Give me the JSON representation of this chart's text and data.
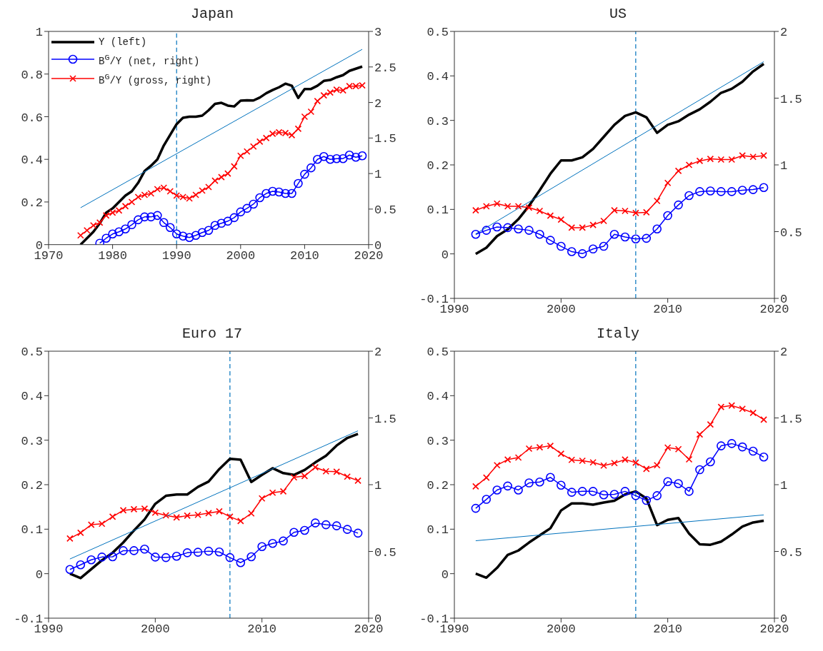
{
  "chart_data": [
    {
      "type": "line",
      "title": "Japan",
      "xlim": [
        1970,
        2020
      ],
      "xticks": [
        1970,
        1980,
        1990,
        2000,
        2010,
        2020
      ],
      "ylim": [
        0,
        1
      ],
      "yticks": [
        0,
        0.2,
        0.4,
        0.6,
        0.8,
        1
      ],
      "y2lim": [
        0,
        3
      ],
      "y2ticks": [
        0,
        0.5,
        1,
        1.5,
        2,
        2.5,
        3
      ],
      "legend": "top left",
      "ref_lines": [
        {
          "axis": "x",
          "value": 1990,
          "color": "#0072bd",
          "line_style": "dashed"
        }
      ],
      "series": [
        {
          "name": "Y (left)",
          "color": "#000000",
          "marker": "none",
          "x": [
            1975,
            1976,
            1977,
            1978,
            1979,
            1980,
            1981,
            1982,
            1983,
            1984,
            1985,
            1986,
            1987,
            1988,
            1989,
            1990,
            1991,
            1992,
            1993,
            1994,
            1995,
            1996,
            1997,
            1998,
            1999,
            2000,
            2001,
            2002,
            2003,
            2004,
            2005,
            2006,
            2007,
            2008,
            2009,
            2010,
            2011,
            2012,
            2013,
            2014,
            2015,
            2016,
            2017,
            2018,
            2019
          ],
          "values": [
            0.0,
            0.03,
            0.06,
            0.1,
            0.15,
            0.17,
            0.2,
            0.23,
            0.25,
            0.29,
            0.345,
            0.37,
            0.4,
            0.465,
            0.515,
            0.565,
            0.595,
            0.6,
            0.6,
            0.605,
            0.63,
            0.66,
            0.665,
            0.652,
            0.648,
            0.675,
            0.677,
            0.676,
            0.69,
            0.71,
            0.725,
            0.738,
            0.755,
            0.745,
            0.688,
            0.73,
            0.73,
            0.745,
            0.768,
            0.772,
            0.785,
            0.795,
            0.815,
            0.825,
            0.835
          ]
        },
        {
          "name": "B$^{G}$/Y (net, right)",
          "color": "#0000ff",
          "marker": "circle",
          "axis": "y2",
          "x": [
            1978,
            1979,
            1980,
            1981,
            1982,
            1983,
            1984,
            1985,
            1986,
            1987,
            1988,
            1989,
            1990,
            1991,
            1992,
            1993,
            1994,
            1995,
            1996,
            1997,
            1998,
            1999,
            2000,
            2001,
            2002,
            2003,
            2004,
            2005,
            2006,
            2007,
            2008,
            2009,
            2010,
            2011,
            2012,
            2013,
            2014,
            2015,
            2016,
            2017,
            2018,
            2019
          ],
          "values": [
            0.02,
            0.09,
            0.15,
            0.18,
            0.22,
            0.28,
            0.35,
            0.39,
            0.39,
            0.41,
            0.31,
            0.24,
            0.15,
            0.12,
            0.1,
            0.13,
            0.17,
            0.2,
            0.27,
            0.3,
            0.33,
            0.38,
            0.46,
            0.51,
            0.57,
            0.66,
            0.72,
            0.75,
            0.74,
            0.72,
            0.72,
            0.86,
            0.99,
            1.08,
            1.2,
            1.24,
            1.2,
            1.21,
            1.21,
            1.26,
            1.23,
            1.25
          ]
        },
        {
          "name": "B$^{G}$/Y (gross, right)",
          "color": "#ff0000",
          "marker": "cross",
          "axis": "y2",
          "x": [
            1975,
            1976,
            1977,
            1978,
            1979,
            1980,
            1981,
            1982,
            1983,
            1984,
            1985,
            1986,
            1987,
            1988,
            1989,
            1990,
            1991,
            1992,
            1993,
            1994,
            1995,
            1996,
            1997,
            1998,
            1999,
            2000,
            2001,
            2002,
            2003,
            2004,
            2005,
            2006,
            2007,
            2008,
            2009,
            2010,
            2011,
            2012,
            2013,
            2014,
            2015,
            2016,
            2017,
            2018,
            2019
          ],
          "values": [
            0.13,
            0.2,
            0.27,
            0.31,
            0.41,
            0.45,
            0.48,
            0.54,
            0.6,
            0.67,
            0.7,
            0.72,
            0.78,
            0.8,
            0.75,
            0.69,
            0.67,
            0.65,
            0.7,
            0.76,
            0.81,
            0.9,
            0.95,
            1.0,
            1.1,
            1.25,
            1.31,
            1.38,
            1.45,
            1.5,
            1.56,
            1.58,
            1.57,
            1.54,
            1.63,
            1.8,
            1.87,
            2.02,
            2.1,
            2.14,
            2.18,
            2.17,
            2.23,
            2.23,
            2.24
          ]
        },
        {
          "color": "#0072bd",
          "marker": "none",
          "x": [
            1975,
            2019
          ],
          "values": [
            0.173,
            0.916
          ]
        }
      ]
    },
    {
      "type": "line",
      "title": "US",
      "xlim": [
        1990,
        2020
      ],
      "xticks": [
        1990,
        2000,
        2010,
        2020
      ],
      "ylim": [
        -0.1,
        0.5
      ],
      "yticks": [
        -0.1,
        0,
        0.1,
        0.2,
        0.3,
        0.4,
        0.5
      ],
      "y2lim": [
        0,
        2
      ],
      "y2ticks": [
        0,
        0.5,
        1,
        1.5,
        2
      ],
      "ref_lines": [
        {
          "axis": "x",
          "value": 2007,
          "color": "#0072bd",
          "line_style": "dashed"
        }
      ],
      "series": [
        {
          "color": "#000000",
          "marker": "none",
          "x": [
            1992,
            1993,
            1994,
            1995,
            1996,
            1997,
            1998,
            1999,
            2000,
            2001,
            2002,
            2003,
            2004,
            2005,
            2006,
            2007,
            2008,
            2009,
            2010,
            2011,
            2012,
            2013,
            2014,
            2015,
            2016,
            2017,
            2018,
            2019
          ],
          "values": [
            0.0,
            0.014,
            0.04,
            0.055,
            0.078,
            0.108,
            0.143,
            0.18,
            0.21,
            0.21,
            0.217,
            0.236,
            0.263,
            0.29,
            0.31,
            0.318,
            0.307,
            0.272,
            0.29,
            0.298,
            0.313,
            0.325,
            0.342,
            0.362,
            0.371,
            0.387,
            0.41,
            0.427
          ]
        },
        {
          "color": "#0000ff",
          "marker": "circle",
          "axis": "y2",
          "x": [
            1992,
            1993,
            1994,
            1995,
            1996,
            1997,
            1998,
            1999,
            2000,
            2001,
            2002,
            2003,
            2004,
            2005,
            2006,
            2007,
            2008,
            2009,
            2010,
            2011,
            2012,
            2013,
            2014,
            2015,
            2016,
            2017,
            2018,
            2019
          ],
          "values": [
            0.48,
            0.51,
            0.535,
            0.53,
            0.52,
            0.51,
            0.48,
            0.435,
            0.39,
            0.35,
            0.335,
            0.37,
            0.39,
            0.48,
            0.46,
            0.445,
            0.45,
            0.52,
            0.62,
            0.7,
            0.77,
            0.8,
            0.805,
            0.8,
            0.8,
            0.81,
            0.815,
            0.83
          ]
        },
        {
          "color": "#ff0000",
          "marker": "cross",
          "axis": "y2",
          "x": [
            1992,
            1993,
            1994,
            1995,
            1996,
            1997,
            1998,
            1999,
            2000,
            2001,
            2002,
            2003,
            2004,
            2005,
            2006,
            2007,
            2008,
            2009,
            2010,
            2011,
            2012,
            2013,
            2014,
            2015,
            2016,
            2017,
            2018,
            2019
          ],
          "values": [
            0.66,
            0.69,
            0.71,
            0.69,
            0.69,
            0.68,
            0.655,
            0.62,
            0.59,
            0.53,
            0.53,
            0.55,
            0.58,
            0.66,
            0.655,
            0.64,
            0.645,
            0.73,
            0.865,
            0.955,
            1.0,
            1.03,
            1.045,
            1.04,
            1.04,
            1.07,
            1.06,
            1.07
          ]
        },
        {
          "color": "#0072bd",
          "marker": "none",
          "x": [
            1992,
            2019
          ],
          "values": [
            0.045,
            0.432
          ]
        }
      ]
    },
    {
      "type": "line",
      "title": "Euro 17",
      "xlim": [
        1990,
        2020
      ],
      "xticks": [
        1990,
        2000,
        2010,
        2020
      ],
      "ylim": [
        -0.1,
        0.5
      ],
      "yticks": [
        -0.1,
        0,
        0.1,
        0.2,
        0.3,
        0.4,
        0.5
      ],
      "y2lim": [
        0,
        2
      ],
      "y2ticks": [
        0,
        0.5,
        1,
        1.5,
        2
      ],
      "ref_lines": [
        {
          "axis": "x",
          "value": 2007,
          "color": "#0072bd",
          "line_style": "dashed"
        }
      ],
      "series": [
        {
          "color": "#000000",
          "marker": "none",
          "x": [
            1992,
            1993,
            1994,
            1995,
            1996,
            1997,
            1998,
            1999,
            2000,
            2001,
            2002,
            2003,
            2004,
            2005,
            2006,
            2007,
            2008,
            2009,
            2010,
            2011,
            2012,
            2013,
            2014,
            2015,
            2016,
            2017,
            2018,
            2019
          ],
          "values": [
            0.0,
            -0.01,
            0.01,
            0.03,
            0.047,
            0.07,
            0.097,
            0.122,
            0.157,
            0.175,
            0.178,
            0.178,
            0.195,
            0.207,
            0.235,
            0.258,
            0.256,
            0.206,
            0.222,
            0.237,
            0.226,
            0.222,
            0.233,
            0.25,
            0.265,
            0.288,
            0.305,
            0.314
          ]
        },
        {
          "color": "#0000ff",
          "marker": "circle",
          "axis": "y2",
          "x": [
            1992,
            1993,
            1994,
            1995,
            1996,
            1997,
            1998,
            1999,
            2000,
            2001,
            2002,
            2003,
            2004,
            2005,
            2006,
            2007,
            2008,
            2009,
            2010,
            2011,
            2012,
            2013,
            2014,
            2015,
            2016,
            2017,
            2018,
            2019
          ],
          "values": [
            0.365,
            0.4,
            0.437,
            0.458,
            0.46,
            0.506,
            0.506,
            0.517,
            0.458,
            0.454,
            0.464,
            0.49,
            0.494,
            0.502,
            0.496,
            0.454,
            0.416,
            0.46,
            0.536,
            0.56,
            0.578,
            0.643,
            0.658,
            0.713,
            0.7,
            0.692,
            0.665,
            0.637
          ]
        },
        {
          "color": "#ff0000",
          "marker": "cross",
          "axis": "y2",
          "x": [
            1992,
            1993,
            1994,
            1995,
            1996,
            1997,
            1998,
            1999,
            2000,
            2001,
            2002,
            2003,
            2004,
            2005,
            2006,
            2007,
            2008,
            2009,
            2010,
            2011,
            2012,
            2013,
            2014,
            2015,
            2016,
            2017,
            2018,
            2019
          ],
          "values": [
            0.597,
            0.64,
            0.7,
            0.707,
            0.76,
            0.808,
            0.816,
            0.82,
            0.79,
            0.77,
            0.755,
            0.768,
            0.774,
            0.787,
            0.8,
            0.76,
            0.728,
            0.785,
            0.897,
            0.94,
            0.95,
            1.055,
            1.065,
            1.13,
            1.1,
            1.097,
            1.06,
            1.03
          ]
        },
        {
          "color": "#0072bd",
          "marker": "none",
          "x": [
            1992,
            2019
          ],
          "values": [
            0.033,
            0.321
          ]
        }
      ]
    },
    {
      "type": "line",
      "title": "Italy",
      "xlim": [
        1990,
        2020
      ],
      "xticks": [
        1990,
        2000,
        2010,
        2020
      ],
      "ylim": [
        -0.1,
        0.5
      ],
      "yticks": [
        -0.1,
        0,
        0.1,
        0.2,
        0.3,
        0.4,
        0.5
      ],
      "y2lim": [
        0,
        2
      ],
      "y2ticks": [
        0,
        0.5,
        1,
        1.5,
        2
      ],
      "ref_lines": [
        {
          "axis": "x",
          "value": 2007,
          "color": "#0072bd",
          "line_style": "dashed"
        }
      ],
      "series": [
        {
          "color": "#000000",
          "marker": "none",
          "x": [
            1992,
            1993,
            1994,
            1995,
            1996,
            1997,
            1998,
            1999,
            2000,
            2001,
            2002,
            2003,
            2004,
            2005,
            2006,
            2007,
            2008,
            2009,
            2010,
            2011,
            2012,
            2013,
            2014,
            2015,
            2016,
            2017,
            2018,
            2019
          ],
          "values": [
            0.0,
            -0.009,
            0.013,
            0.042,
            0.052,
            0.07,
            0.086,
            0.102,
            0.142,
            0.158,
            0.158,
            0.155,
            0.16,
            0.164,
            0.178,
            0.185,
            0.169,
            0.109,
            0.121,
            0.125,
            0.09,
            0.066,
            0.065,
            0.072,
            0.088,
            0.106,
            0.115,
            0.119
          ]
        },
        {
          "color": "#0000ff",
          "marker": "circle",
          "axis": "y2",
          "x": [
            1992,
            1993,
            1994,
            1995,
            1996,
            1997,
            1998,
            1999,
            2000,
            2001,
            2002,
            2003,
            2004,
            2005,
            2006,
            2007,
            2008,
            2009,
            2010,
            2011,
            2012,
            2013,
            2014,
            2015,
            2016,
            2017,
            2018,
            2019
          ],
          "values": [
            0.823,
            0.89,
            0.96,
            0.99,
            0.96,
            1.013,
            1.02,
            1.055,
            0.996,
            0.943,
            0.95,
            0.95,
            0.924,
            0.928,
            0.95,
            0.918,
            0.882,
            0.918,
            1.023,
            1.008,
            0.95,
            1.112,
            1.171,
            1.291,
            1.308,
            1.283,
            1.251,
            1.207
          ]
        },
        {
          "color": "#ff0000",
          "marker": "cross",
          "axis": "y2",
          "x": [
            1992,
            1993,
            1994,
            1995,
            1996,
            1997,
            1998,
            1999,
            2000,
            2001,
            2002,
            2003,
            2004,
            2005,
            2006,
            2007,
            2008,
            2009,
            2010,
            2011,
            2012,
            2013,
            2014,
            2015,
            2016,
            2017,
            2018,
            2019
          ],
          "values": [
            0.987,
            1.053,
            1.146,
            1.188,
            1.203,
            1.27,
            1.28,
            1.291,
            1.232,
            1.186,
            1.179,
            1.167,
            1.143,
            1.162,
            1.188,
            1.165,
            1.118,
            1.146,
            1.278,
            1.266,
            1.19,
            1.376,
            1.451,
            1.582,
            1.593,
            1.568,
            1.538,
            1.487
          ]
        },
        {
          "color": "#0072bd",
          "marker": "none",
          "x": [
            1992,
            2019
          ],
          "values": [
            0.074,
            0.132
          ]
        }
      ]
    }
  ]
}
